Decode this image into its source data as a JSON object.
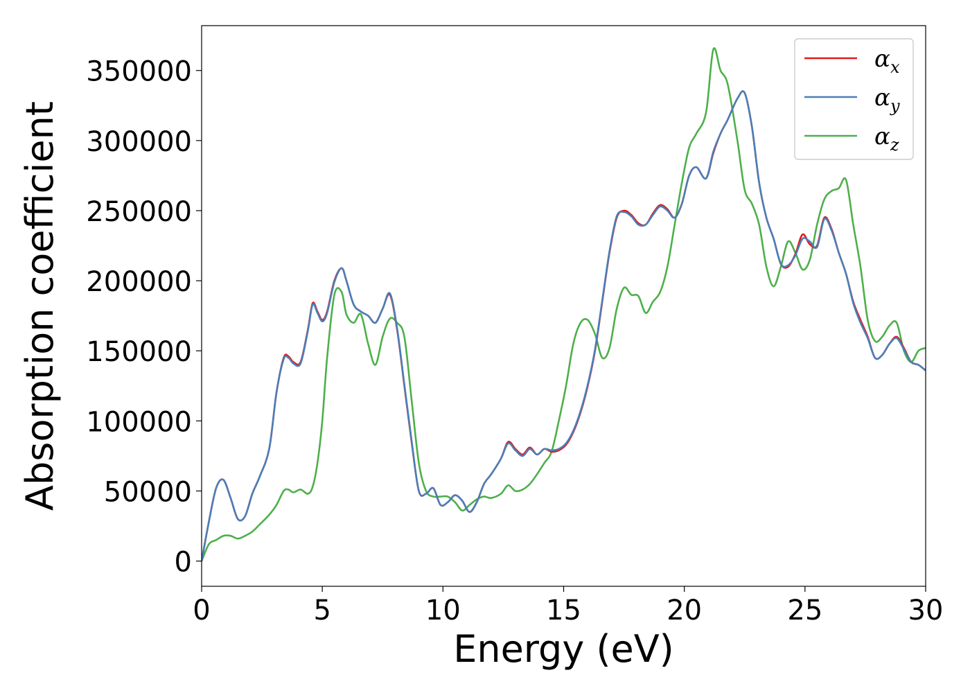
{
  "chart_data": {
    "type": "line",
    "xlabel": "Energy (eV)",
    "ylabel": "Absorption coefficient",
    "xlim": [
      0,
      30
    ],
    "ylim": [
      -18000,
      382000
    ],
    "xticks": [
      0,
      5,
      10,
      15,
      20,
      25,
      30
    ],
    "yticks": [
      0,
      50000,
      100000,
      150000,
      200000,
      250000,
      300000,
      350000
    ],
    "grid": false,
    "legend_position": "top-right",
    "series": [
      {
        "name": "α_x",
        "label_base": "α",
        "label_sub": "x",
        "color": "#e41a1c",
        "x": [
          0,
          0.3,
          0.6,
          0.9,
          1.2,
          1.5,
          1.8,
          2.1,
          2.4,
          2.8,
          3.1,
          3.4,
          3.6,
          3.8,
          4.1,
          4.4,
          4.6,
          4.8,
          5.0,
          5.2,
          5.5,
          5.8,
          6.0,
          6.3,
          6.6,
          6.9,
          7.2,
          7.5,
          7.8,
          8.1,
          8.4,
          8.7,
          9.0,
          9.3,
          9.6,
          9.9,
          10.2,
          10.5,
          10.8,
          11.1,
          11.4,
          11.7,
          12.0,
          12.4,
          12.7,
          13.0,
          13.3,
          13.6,
          13.9,
          14.2,
          14.5,
          14.8,
          15.1,
          15.4,
          15.7,
          16.0,
          16.3,
          16.6,
          16.9,
          17.2,
          17.5,
          17.8,
          18.1,
          18.4,
          18.7,
          19.0,
          19.3,
          19.6,
          19.9,
          20.2,
          20.5,
          20.9,
          21.2,
          21.5,
          21.8,
          22.2,
          22.5,
          22.8,
          23.1,
          23.4,
          23.7,
          24.0,
          24.3,
          24.6,
          24.9,
          25.2,
          25.5,
          25.8,
          26.1,
          26.4,
          26.7,
          27.0,
          27.3,
          27.6,
          27.9,
          28.2,
          28.5,
          28.8,
          29.1,
          29.4,
          29.7,
          30.0
        ],
        "y": [
          0,
          28000,
          52000,
          58000,
          45000,
          30000,
          32000,
          48000,
          60000,
          80000,
          120000,
          145000,
          146000,
          142000,
          142000,
          165000,
          184000,
          178000,
          172000,
          178000,
          200000,
          209000,
          200000,
          183000,
          178000,
          175000,
          170000,
          180000,
          190000,
          165000,
          125000,
          85000,
          50000,
          48000,
          52000,
          40000,
          42000,
          47000,
          43000,
          35000,
          42000,
          55000,
          62000,
          73000,
          85000,
          80000,
          76000,
          81000,
          76000,
          80000,
          78000,
          79000,
          83000,
          92000,
          106000,
          125000,
          150000,
          185000,
          220000,
          245000,
          250000,
          247000,
          241000,
          240000,
          248000,
          254000,
          251000,
          245000,
          255000,
          275000,
          281000,
          273000,
          291000,
          305000,
          315000,
          330000,
          334000,
          310000,
          270000,
          245000,
          230000,
          212000,
          210000,
          219000,
          233000,
          226000,
          225000,
          245000,
          237000,
          220000,
          205000,
          185000,
          172000,
          160000,
          145000,
          147000,
          155000,
          160000,
          152000,
          142000,
          140000,
          136000
        ]
      },
      {
        "name": "α_y",
        "label_base": "α",
        "label_sub": "y",
        "color": "#4a7fb8",
        "x": [
          0,
          0.3,
          0.6,
          0.9,
          1.2,
          1.5,
          1.8,
          2.1,
          2.4,
          2.8,
          3.1,
          3.4,
          3.6,
          3.8,
          4.1,
          4.4,
          4.6,
          4.8,
          5.0,
          5.2,
          5.5,
          5.8,
          6.0,
          6.3,
          6.6,
          6.9,
          7.2,
          7.5,
          7.8,
          8.1,
          8.4,
          8.7,
          9.0,
          9.3,
          9.6,
          9.9,
          10.2,
          10.5,
          10.8,
          11.1,
          11.4,
          11.7,
          12.0,
          12.4,
          12.7,
          13.0,
          13.3,
          13.6,
          13.9,
          14.2,
          14.5,
          14.8,
          15.1,
          15.4,
          15.7,
          16.0,
          16.3,
          16.6,
          16.9,
          17.2,
          17.5,
          17.8,
          18.1,
          18.4,
          18.7,
          19.0,
          19.3,
          19.6,
          19.9,
          20.2,
          20.5,
          20.9,
          21.2,
          21.5,
          21.8,
          22.2,
          22.5,
          22.8,
          23.1,
          23.4,
          23.7,
          24.0,
          24.3,
          24.6,
          24.9,
          25.2,
          25.5,
          25.8,
          26.1,
          26.4,
          26.7,
          27.0,
          27.3,
          27.6,
          27.9,
          28.2,
          28.5,
          28.8,
          29.1,
          29.4,
          29.7,
          30.0
        ],
        "y": [
          0,
          28000,
          52000,
          58000,
          45000,
          30000,
          32000,
          48000,
          60000,
          80000,
          120000,
          144000,
          145000,
          141000,
          141000,
          164000,
          183000,
          177000,
          171000,
          177000,
          199000,
          209000,
          200000,
          183000,
          178000,
          175000,
          170000,
          180000,
          191000,
          166000,
          126000,
          86000,
          50000,
          48000,
          52000,
          40000,
          42000,
          47000,
          43000,
          35000,
          42000,
          55000,
          62000,
          73000,
          84000,
          79000,
          75000,
          80000,
          76000,
          80000,
          79000,
          80000,
          84000,
          93000,
          107000,
          126000,
          151000,
          186000,
          221000,
          246000,
          249000,
          246000,
          240000,
          240000,
          247000,
          253000,
          250000,
          245000,
          255000,
          275000,
          281000,
          273000,
          292000,
          305000,
          315000,
          330000,
          334000,
          310000,
          270000,
          245000,
          230000,
          212000,
          211000,
          218000,
          230000,
          228000,
          224000,
          244000,
          236000,
          220000,
          205000,
          184000,
          170000,
          159000,
          145000,
          147000,
          155000,
          159000,
          151000,
          142000,
          140000,
          136000
        ]
      },
      {
        "name": "α_z",
        "label_base": "α",
        "label_sub": "z",
        "color": "#4daf4a",
        "x": [
          0,
          0.3,
          0.6,
          0.9,
          1.2,
          1.5,
          1.8,
          2.1,
          2.4,
          2.8,
          3.1,
          3.4,
          3.6,
          3.8,
          4.1,
          4.4,
          4.6,
          4.8,
          5.0,
          5.2,
          5.5,
          5.8,
          6.0,
          6.3,
          6.6,
          6.9,
          7.2,
          7.5,
          7.8,
          8.1,
          8.4,
          8.7,
          9.0,
          9.3,
          9.6,
          9.9,
          10.2,
          10.5,
          10.8,
          11.1,
          11.4,
          11.7,
          12.0,
          12.4,
          12.7,
          13.0,
          13.3,
          13.6,
          13.9,
          14.2,
          14.5,
          14.8,
          15.1,
          15.4,
          15.7,
          16.0,
          16.3,
          16.6,
          16.9,
          17.2,
          17.5,
          17.8,
          18.1,
          18.4,
          18.7,
          19.0,
          19.3,
          19.6,
          19.9,
          20.2,
          20.5,
          20.9,
          21.2,
          21.5,
          21.8,
          22.2,
          22.5,
          22.8,
          23.1,
          23.4,
          23.7,
          24.0,
          24.3,
          24.6,
          24.9,
          25.2,
          25.5,
          25.8,
          26.1,
          26.4,
          26.7,
          27.0,
          27.3,
          27.6,
          27.9,
          28.2,
          28.5,
          28.8,
          29.1,
          29.4,
          29.7,
          30.0
        ],
        "y": [
          0,
          12000,
          15000,
          18000,
          18000,
          16000,
          18000,
          21000,
          26000,
          33000,
          40000,
          50000,
          51000,
          49000,
          51000,
          48000,
          53000,
          70000,
          100000,
          145000,
          190000,
          192000,
          176000,
          170000,
          176000,
          155000,
          140000,
          160000,
          173000,
          170000,
          160000,
          115000,
          70000,
          50000,
          46000,
          46000,
          46000,
          42000,
          36000,
          40000,
          44000,
          46000,
          45000,
          48000,
          54000,
          50000,
          51000,
          55000,
          62000,
          70000,
          78000,
          100000,
          125000,
          155000,
          170000,
          172000,
          162000,
          145000,
          152000,
          180000,
          195000,
          190000,
          189000,
          177000,
          185000,
          192000,
          210000,
          240000,
          270000,
          295000,
          305000,
          320000,
          365000,
          350000,
          340000,
          300000,
          265000,
          255000,
          240000,
          210000,
          196000,
          210000,
          228000,
          220000,
          208000,
          215000,
          240000,
          258000,
          264000,
          266000,
          272000,
          240000,
          210000,
          172000,
          157000,
          160000,
          168000,
          170000,
          150000,
          142000,
          150000,
          152000
        ]
      }
    ]
  }
}
